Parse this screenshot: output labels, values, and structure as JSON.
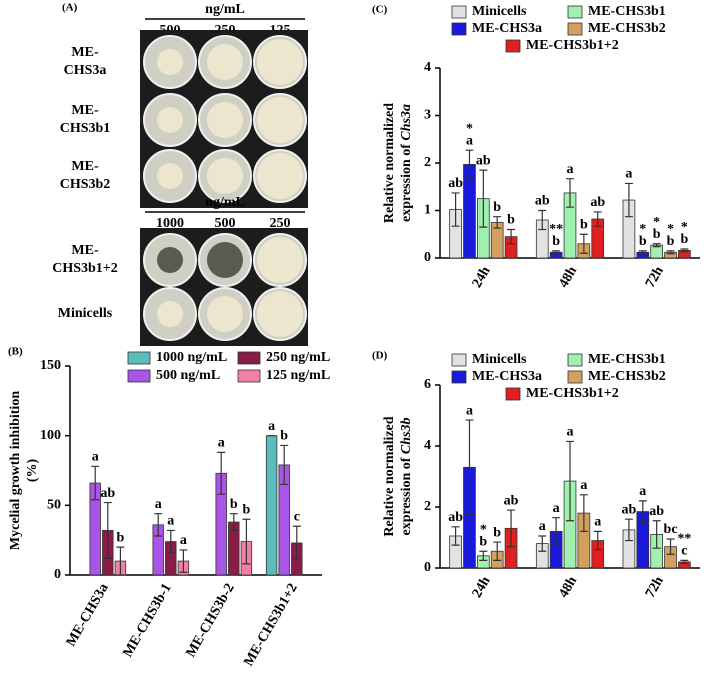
{
  "panel_a": {
    "label": "(A)",
    "top": {
      "unit": "ng/mL",
      "doses": [
        "500",
        "250",
        "125"
      ],
      "rows": [
        [
          "ME-",
          "CHS3a"
        ],
        [
          "ME-",
          "CHS3b1"
        ],
        [
          "ME-",
          "CHS3b2"
        ]
      ]
    },
    "bottom": {
      "unit": "ng/mL",
      "doses": [
        "1000",
        "500",
        "250"
      ],
      "rows": [
        [
          "ME-",
          "CHS3b1+2"
        ],
        [
          "Minicells"
        ]
      ]
    }
  },
  "chart_data": [
    {
      "type": "bar",
      "panel": "(B)",
      "ylabel": [
        "Mycelial growth inhibition",
        "(%)"
      ],
      "categories": [
        "ME-CHS3a",
        "ME-CHS3b-1",
        "ME-CHS3b-2",
        "ME-CHS3b1+2"
      ],
      "ylim": [
        0,
        150
      ],
      "yticks": [
        0,
        50,
        100,
        150
      ],
      "series": [
        {
          "name": "1000 ng/mL",
          "color": "#5cbcbc",
          "values": [
            null,
            null,
            null,
            100
          ],
          "errors": [
            null,
            null,
            null,
            0
          ],
          "labels": [
            null,
            null,
            null,
            "a"
          ]
        },
        {
          "name": "500 ng/mL",
          "color": "#a855e8",
          "values": [
            66,
            36,
            73,
            79
          ],
          "errors": [
            12,
            8,
            15,
            14
          ],
          "labels": [
            "a",
            "a",
            "a",
            "b"
          ]
        },
        {
          "name": "250 ng/mL",
          "color": "#8a1c48",
          "values": [
            32,
            24,
            38,
            23
          ],
          "errors": [
            20,
            8,
            6,
            12
          ],
          "labels": [
            "ab",
            "a",
            "b",
            "c"
          ]
        },
        {
          "name": "125 ng/mL",
          "color": "#f27fa8",
          "values": [
            10,
            10,
            24,
            null
          ],
          "errors": [
            10,
            8,
            16,
            null
          ],
          "labels": [
            "b",
            "a",
            "b",
            null
          ]
        }
      ]
    },
    {
      "type": "bar",
      "panel": "(C)",
      "ylabel": [
        "Relative normalized",
        "expression of"
      ],
      "ylabel_italic": "Chs3a",
      "categories": [
        "24h",
        "48h",
        "72h"
      ],
      "ylim": [
        0,
        4
      ],
      "yticks": [
        0,
        1,
        2,
        3,
        4
      ],
      "series": [
        {
          "name": "Minicells",
          "color": "#e2e2e2",
          "values": [
            1.02,
            0.8,
            1.22
          ],
          "errors": [
            0.35,
            0.2,
            0.35
          ],
          "labels": [
            "ab",
            "ab",
            "a"
          ],
          "stars": [
            null,
            null,
            null
          ]
        },
        {
          "name": "ME-CHS3a",
          "color": "#1a1adc",
          "values": [
            1.97,
            0.12,
            0.12
          ],
          "errors": [
            0.3,
            0.03,
            0.03
          ],
          "labels": [
            "a",
            "b",
            "b"
          ],
          "stars": [
            "*",
            "**",
            "*"
          ]
        },
        {
          "name": "ME-CHS3b1",
          "color": "#a0f0b0",
          "values": [
            1.25,
            1.37,
            0.27
          ],
          "errors": [
            0.6,
            0.3,
            0.03
          ],
          "labels": [
            "ab",
            "a",
            "b"
          ],
          "stars": [
            null,
            null,
            "*"
          ]
        },
        {
          "name": "ME-CHS3b2",
          "color": "#d4a060",
          "values": [
            0.75,
            0.3,
            0.12
          ],
          "errors": [
            0.12,
            0.2,
            0.03
          ],
          "labels": [
            "b",
            "b",
            "b"
          ],
          "stars": [
            null,
            null,
            "*"
          ]
        },
        {
          "name": "ME-CHS3b1+2",
          "color": "#e02020",
          "values": [
            0.45,
            0.82,
            0.16
          ],
          "errors": [
            0.15,
            0.15,
            0.03
          ],
          "labels": [
            "b",
            "ab",
            "b"
          ],
          "stars": [
            null,
            null,
            "*"
          ]
        }
      ]
    },
    {
      "type": "bar",
      "panel": "(D)",
      "ylabel": [
        "Relative normalized",
        "expression of"
      ],
      "ylabel_italic": "Chs3b",
      "categories": [
        "24h",
        "48h",
        "72h"
      ],
      "ylim": [
        0,
        6
      ],
      "yticks": [
        0,
        2,
        4,
        6
      ],
      "series": [
        {
          "name": "Minicells",
          "color": "#e2e2e2",
          "values": [
            1.05,
            0.8,
            1.25
          ],
          "errors": [
            0.3,
            0.25,
            0.35
          ],
          "labels": [
            "ab",
            "a",
            "ab"
          ],
          "stars": [
            null,
            null,
            null
          ]
        },
        {
          "name": "ME-CHS3a",
          "color": "#1a1adc",
          "values": [
            3.3,
            1.2,
            1.85
          ],
          "errors": [
            1.55,
            0.45,
            0.35
          ],
          "labels": [
            "a",
            "a",
            "a"
          ],
          "stars": [
            null,
            null,
            null
          ]
        },
        {
          "name": "ME-CHS3b1",
          "color": "#a0f0b0",
          "values": [
            0.4,
            2.85,
            1.1
          ],
          "errors": [
            0.15,
            1.3,
            0.45
          ],
          "labels": [
            "b",
            "a",
            "ab"
          ],
          "stars": [
            "*",
            null,
            null
          ]
        },
        {
          "name": "ME-CHS3b2",
          "color": "#d4a060",
          "values": [
            0.55,
            1.8,
            0.7
          ],
          "errors": [
            0.3,
            0.6,
            0.25
          ],
          "labels": [
            "b",
            "a",
            "bc"
          ],
          "stars": [
            null,
            null,
            null
          ]
        },
        {
          "name": "ME-CHS3b1+2",
          "color": "#e02020",
          "values": [
            1.3,
            0.9,
            0.2
          ],
          "errors": [
            0.6,
            0.3,
            0.05
          ],
          "labels": [
            "ab",
            "a",
            "c"
          ],
          "stars": [
            null,
            null,
            "**"
          ]
        }
      ]
    }
  ]
}
